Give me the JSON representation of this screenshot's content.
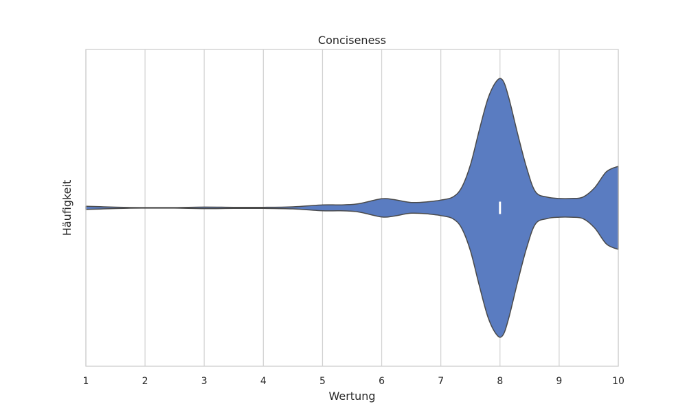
{
  "chart_data": {
    "type": "violin",
    "title": "Conciseness",
    "xlabel": "Wertung",
    "ylabel": "Häufigkeit",
    "xlim": [
      1,
      10
    ],
    "xticks": [
      1,
      2,
      3,
      4,
      5,
      6,
      7,
      8,
      9,
      10
    ],
    "grid": "vertical",
    "orientation": "horizontal",
    "colors": {
      "fill": "#5a7cc1",
      "outline": "#4a4a4a",
      "grid": "#d3d3d3",
      "frame": "#cccccc",
      "median": "#ffffff"
    },
    "density_half_width": [
      [
        1.0,
        0.012
      ],
      [
        1.3,
        0.008
      ],
      [
        1.7,
        0.003
      ],
      [
        2.0,
        0.002
      ],
      [
        2.5,
        0.002
      ],
      [
        3.0,
        0.006
      ],
      [
        3.5,
        0.004
      ],
      [
        4.0,
        0.004
      ],
      [
        4.5,
        0.008
      ],
      [
        5.0,
        0.022
      ],
      [
        5.3,
        0.022
      ],
      [
        5.6,
        0.03
      ],
      [
        6.0,
        0.068
      ],
      [
        6.2,
        0.062
      ],
      [
        6.5,
        0.04
      ],
      [
        6.8,
        0.046
      ],
      [
        7.0,
        0.058
      ],
      [
        7.2,
        0.08
      ],
      [
        7.35,
        0.15
      ],
      [
        7.5,
        0.32
      ],
      [
        7.65,
        0.58
      ],
      [
        7.8,
        0.82
      ],
      [
        7.95,
        0.95
      ],
      [
        8.05,
        0.95
      ],
      [
        8.15,
        0.82
      ],
      [
        8.3,
        0.55
      ],
      [
        8.45,
        0.3
      ],
      [
        8.6,
        0.12
      ],
      [
        8.8,
        0.08
      ],
      [
        9.0,
        0.07
      ],
      [
        9.2,
        0.07
      ],
      [
        9.4,
        0.08
      ],
      [
        9.6,
        0.15
      ],
      [
        9.8,
        0.27
      ],
      [
        10.0,
        0.31
      ]
    ],
    "median": 8
  }
}
